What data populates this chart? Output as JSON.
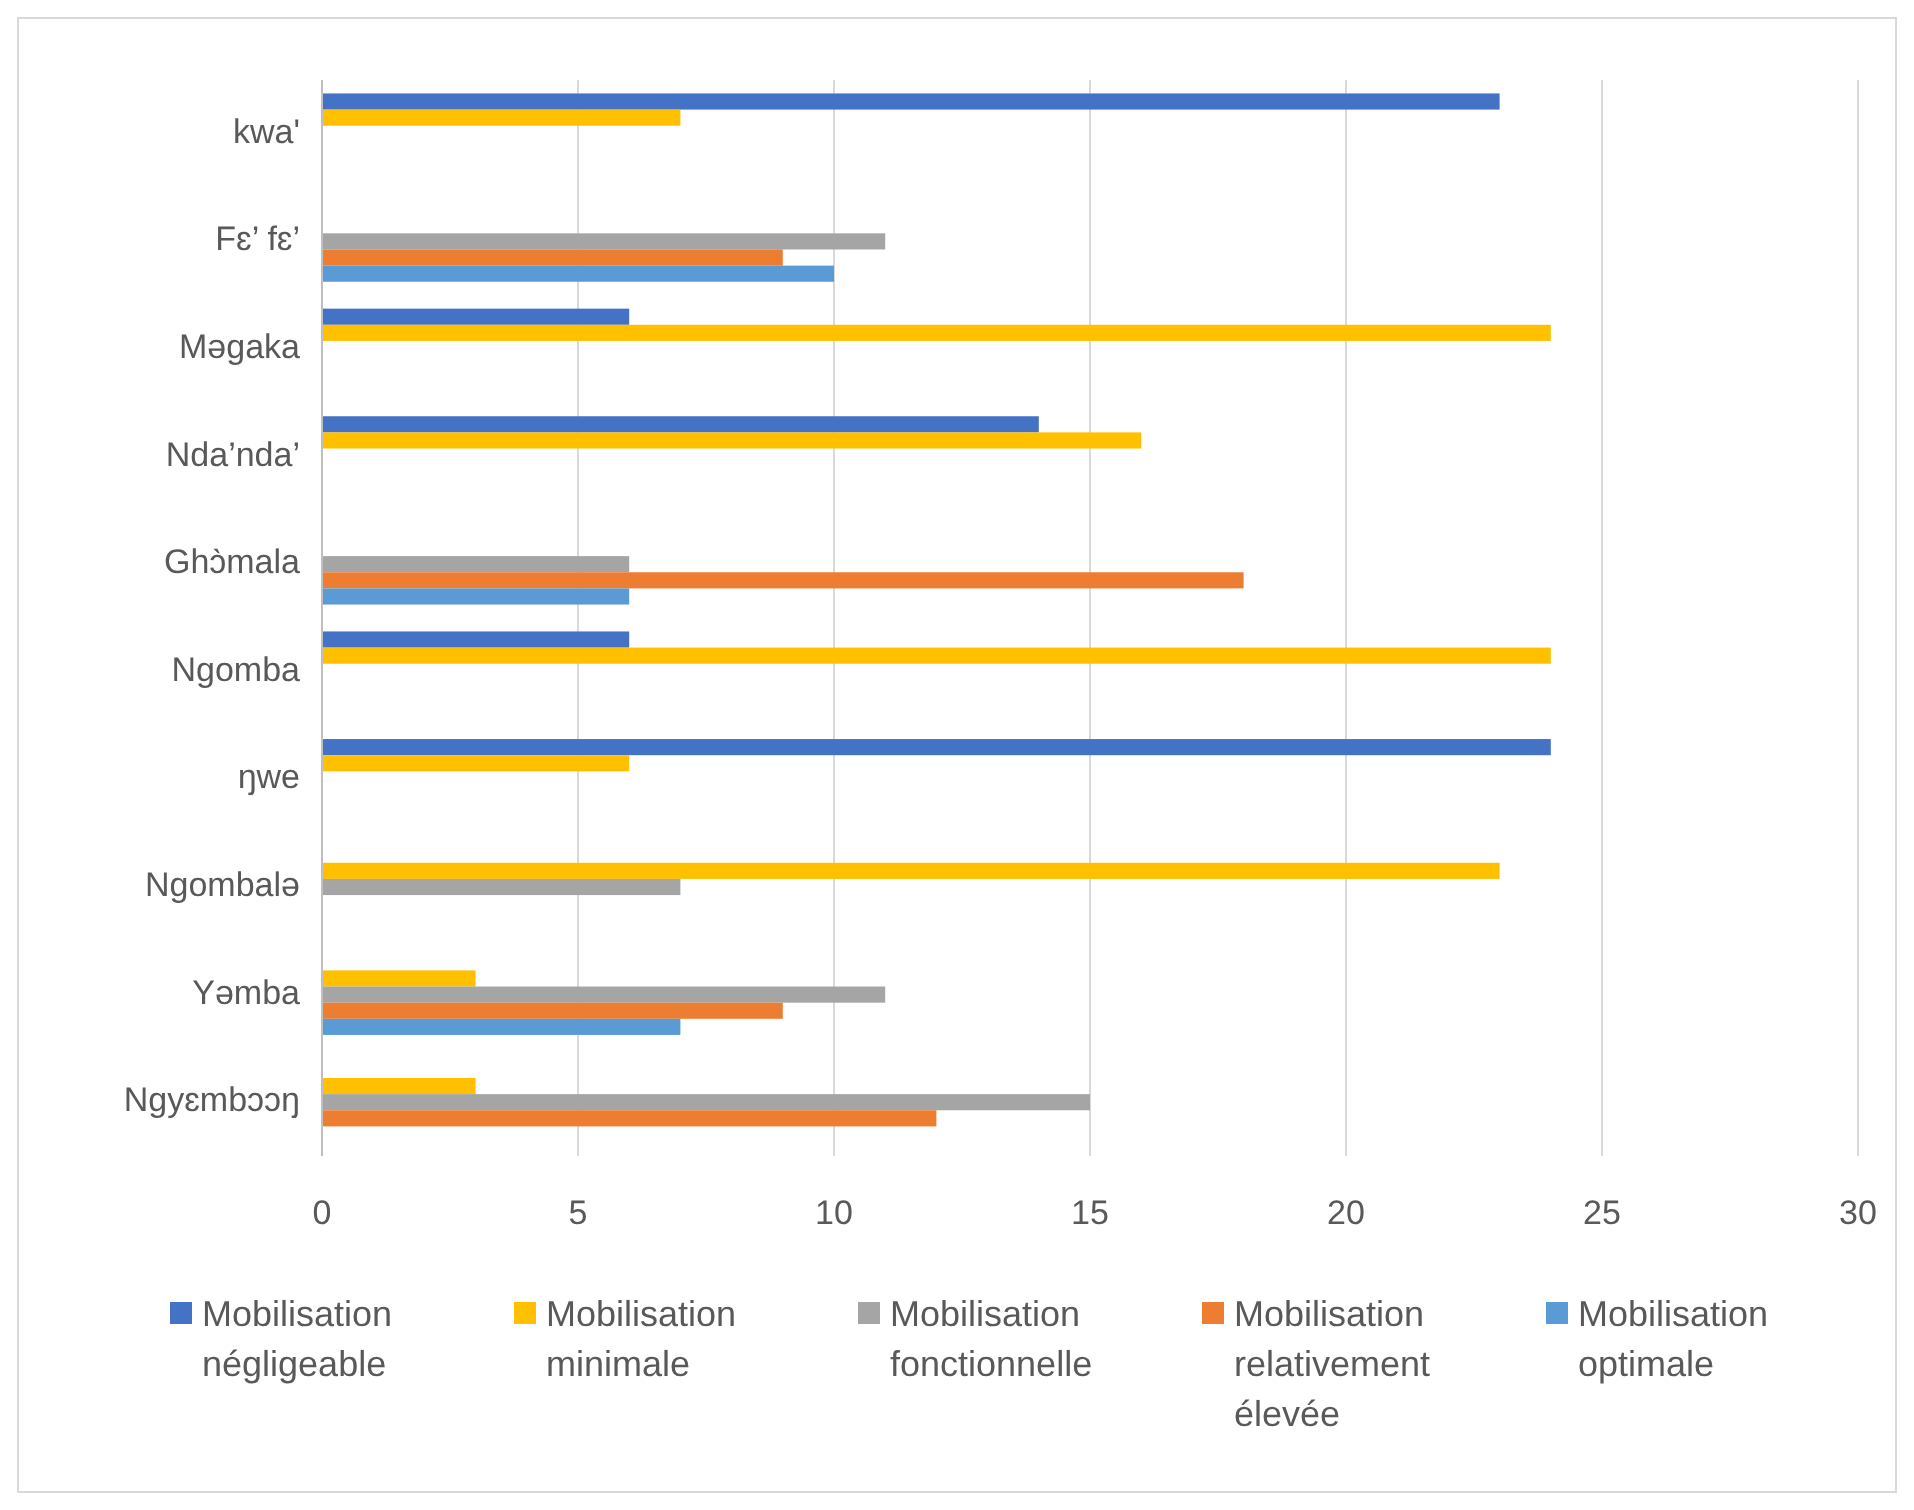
{
  "chart_data": {
    "type": "bar",
    "orientation": "horizontal",
    "categories": [
      "kwa'",
      "Fɛ’ fɛ’",
      "Məgaka",
      "Nda’nda’",
      "Ghɔ̀mala",
      "Ngomba",
      "ŋwe",
      "Ngombalə",
      "Yəmba",
      "Ngyɛmbɔɔŋ"
    ],
    "series": [
      {
        "name": "Mobilisation négligeable",
        "color": "#4472c4",
        "values": [
          23,
          null,
          6,
          14,
          null,
          6,
          24,
          null,
          null,
          null
        ]
      },
      {
        "name": "Mobilisation minimale",
        "color": "#ffc000",
        "values": [
          7,
          null,
          24,
          16,
          null,
          24,
          6,
          23,
          3,
          3
        ]
      },
      {
        "name": "Mobilisation fonctionnelle",
        "color": "#a5a5a5",
        "values": [
          null,
          11,
          null,
          null,
          6,
          null,
          null,
          7,
          11,
          15
        ]
      },
      {
        "name": "Mobilisation relativement élevée",
        "color": "#ed7d31",
        "values": [
          null,
          9,
          null,
          null,
          18,
          null,
          null,
          null,
          9,
          12
        ]
      },
      {
        "name": "Mobilisation optimale",
        "color": "#5b9bd5",
        "values": [
          null,
          10,
          null,
          null,
          6,
          null,
          null,
          null,
          7,
          null
        ]
      }
    ],
    "xlim": [
      0,
      30
    ],
    "xticks": [
      0,
      5,
      10,
      15,
      20,
      25,
      30
    ],
    "grid": "x",
    "legend": "bottom"
  }
}
